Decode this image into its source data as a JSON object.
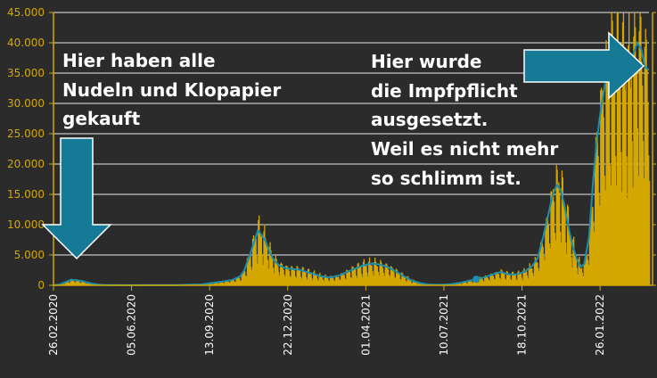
{
  "chart_data": {
    "type": "bar",
    "overlay_line": true,
    "colors": {
      "background": "#2b2b2b",
      "bars": "#d4a800",
      "line": "#1a8fb0",
      "axis": "#d4a800",
      "tick_label_y": "#d4a800",
      "tick_label_x": "#ffffff",
      "grid": "#e8e8e8",
      "arrow": "#157a96",
      "annotation_text": "#ffffff"
    },
    "ylim": [
      0,
      45000
    ],
    "y_ticks": [
      {
        "value": 0,
        "label": "0"
      },
      {
        "value": 5000,
        "label": "5.000"
      },
      {
        "value": 10000,
        "label": "10.000"
      },
      {
        "value": 15000,
        "label": "15.000"
      },
      {
        "value": 20000,
        "label": "20.000"
      },
      {
        "value": 25000,
        "label": "25.000"
      },
      {
        "value": 30000,
        "label": "30.000"
      },
      {
        "value": 35000,
        "label": "35.000"
      },
      {
        "value": 40000,
        "label": "40.000"
      },
      {
        "value": 45000,
        "label": "45.000"
      }
    ],
    "x_ticks": [
      "26.02.2020",
      "05.06.2020",
      "13.09.2020",
      "22.12.2020",
      "01.04.2021",
      "10.07.2021",
      "18.10.2021",
      "26.01.2022"
    ],
    "x_tick_interval_days": 99,
    "grid": "horizontal",
    "series_points": [
      [
        "26.02.2020",
        0
      ],
      [
        "05.03.2020",
        150
      ],
      [
        "12.03.2020",
        500
      ],
      [
        "19.03.2020",
        900
      ],
      [
        "26.03.2020",
        850
      ],
      [
        "02.04.2020",
        700
      ],
      [
        "09.04.2020",
        450
      ],
      [
        "16.04.2020",
        250
      ],
      [
        "23.04.2020",
        120
      ],
      [
        "30.04.2020",
        60
      ],
      [
        "10.05.2020",
        30
      ],
      [
        "01.06.2020",
        20
      ],
      [
        "01.07.2020",
        30
      ],
      [
        "01.08.2020",
        50
      ],
      [
        "01.09.2020",
        150
      ],
      [
        "15.09.2020",
        400
      ],
      [
        "29.09.2020",
        650
      ],
      [
        "10.10.2020",
        900
      ],
      [
        "20.10.2020",
        1500
      ],
      [
        "25.10.2020",
        2500
      ],
      [
        "01.11.2020",
        5000
      ],
      [
        "06.11.2020",
        7000
      ],
      [
        "11.11.2020",
        9000
      ],
      [
        "16.11.2020",
        8300
      ],
      [
        "21.11.2020",
        7200
      ],
      [
        "26.11.2020",
        5500
      ],
      [
        "01.12.2020",
        4200
      ],
      [
        "08.12.2020",
        3300
      ],
      [
        "15.12.2020",
        2900
      ],
      [
        "22.12.2020",
        2700
      ],
      [
        "01.01.2021",
        2600
      ],
      [
        "10.01.2021",
        2300
      ],
      [
        "20.01.2021",
        1900
      ],
      [
        "30.01.2021",
        1500
      ],
      [
        "10.02.2021",
        1300
      ],
      [
        "20.02.2021",
        1500
      ],
      [
        "01.03.2021",
        2000
      ],
      [
        "15.03.2021",
        2800
      ],
      [
        "25.03.2021",
        3300
      ],
      [
        "05.04.2021",
        3600
      ],
      [
        "15.04.2021",
        3400
      ],
      [
        "25.04.2021",
        3000
      ],
      [
        "05.05.2021",
        2300
      ],
      [
        "15.05.2021",
        1500
      ],
      [
        "25.05.2021",
        800
      ],
      [
        "05.06.2021",
        350
      ],
      [
        "15.06.2021",
        150
      ],
      [
        "25.06.2021",
        80
      ],
      [
        "05.07.2021",
        100
      ],
      [
        "15.07.2021",
        200
      ],
      [
        "25.07.2021",
        400
      ],
      [
        "05.08.2021",
        700
      ],
      [
        "15.08.2021",
        1000
      ],
      [
        "25.08.2021",
        1300
      ],
      [
        "05.09.2021",
        1800
      ],
      [
        "15.09.2021",
        2200
      ],
      [
        "25.09.2021",
        1800
      ],
      [
        "05.10.2021",
        1800
      ],
      [
        "15.10.2021",
        2200
      ],
      [
        "25.10.2021",
        3200
      ],
      [
        "01.11.2021",
        4500
      ],
      [
        "08.11.2021",
        8000
      ],
      [
        "15.11.2021",
        12000
      ],
      [
        "20.11.2021",
        15000
      ],
      [
        "25.11.2021",
        16500
      ],
      [
        "30.11.2021",
        15800
      ],
      [
        "05.12.2021",
        13000
      ],
      [
        "10.12.2021",
        9500
      ],
      [
        "15.12.2021",
        6500
      ],
      [
        "20.12.2021",
        4500
      ],
      [
        "25.12.2021",
        3000
      ],
      [
        "30.12.2021",
        3500
      ],
      [
        "05.01.2022",
        8000
      ],
      [
        "10.01.2022",
        17000
      ],
      [
        "15.01.2022",
        24000
      ],
      [
        "20.01.2022",
        29000
      ],
      [
        "25.01.2022",
        33000
      ],
      [
        "30.01.2022",
        35500
      ],
      [
        "05.02.2022",
        37500
      ],
      [
        "10.02.2022",
        38500
      ],
      [
        "15.02.2022",
        37000
      ],
      [
        "20.02.2022",
        34000
      ],
      [
        "25.02.2022",
        35500
      ],
      [
        "02.03.2022",
        38000
      ],
      [
        "07.03.2022",
        40000
      ],
      [
        "12.03.2022",
        39000
      ],
      [
        "17.03.2022",
        36000
      ],
      [
        "22.03.2022",
        35500
      ]
    ],
    "marker_point": [
      "15.08.2021",
      1000
    ]
  },
  "annotations": {
    "left_lines": [
      "Hier haben alle",
      "Nudeln und Klopapier",
      "gekauft"
    ],
    "right_lines": [
      "Hier wurde",
      "die Impfpflicht",
      "ausgesetzt.",
      "Weil es nicht mehr",
      "so schlimm ist."
    ]
  }
}
